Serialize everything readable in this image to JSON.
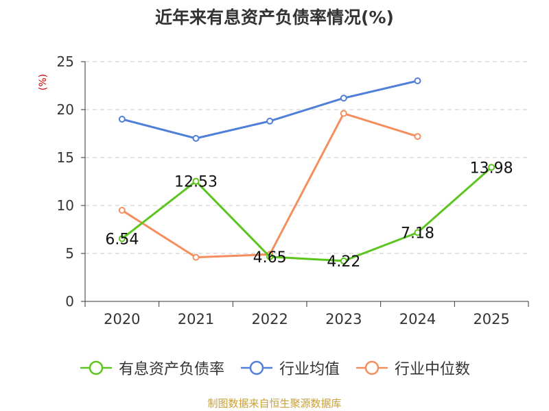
{
  "chart_data": {
    "type": "line",
    "title": "近年来有息资产负债率情况(%)",
    "unit_label": "(%)",
    "categories": [
      "2020",
      "2021",
      "2022",
      "2023",
      "2024",
      "2025"
    ],
    "ylim": [
      0,
      25
    ],
    "yticks": [
      "0",
      "5",
      "10",
      "15",
      "20",
      "25"
    ],
    "grid": true,
    "legend_position": "bottom",
    "series": [
      {
        "name": "有息资产负债率",
        "color": "#5cc41f",
        "values": [
          6.54,
          12.53,
          4.65,
          4.22,
          7.18,
          13.98
        ],
        "labels": [
          "6.54",
          "12.53",
          "4.65",
          "4.22",
          "7.18",
          "13.98"
        ]
      },
      {
        "name": "行业均值",
        "color": "#4f7fd8",
        "values": [
          19.0,
          17.0,
          18.8,
          21.2,
          23.0,
          null
        ]
      },
      {
        "name": "行业中位数",
        "color": "#f58d5c",
        "values": [
          9.5,
          4.6,
          4.9,
          19.6,
          17.2,
          null
        ]
      }
    ]
  },
  "source": "制图数据来自恒生聚源数据库"
}
